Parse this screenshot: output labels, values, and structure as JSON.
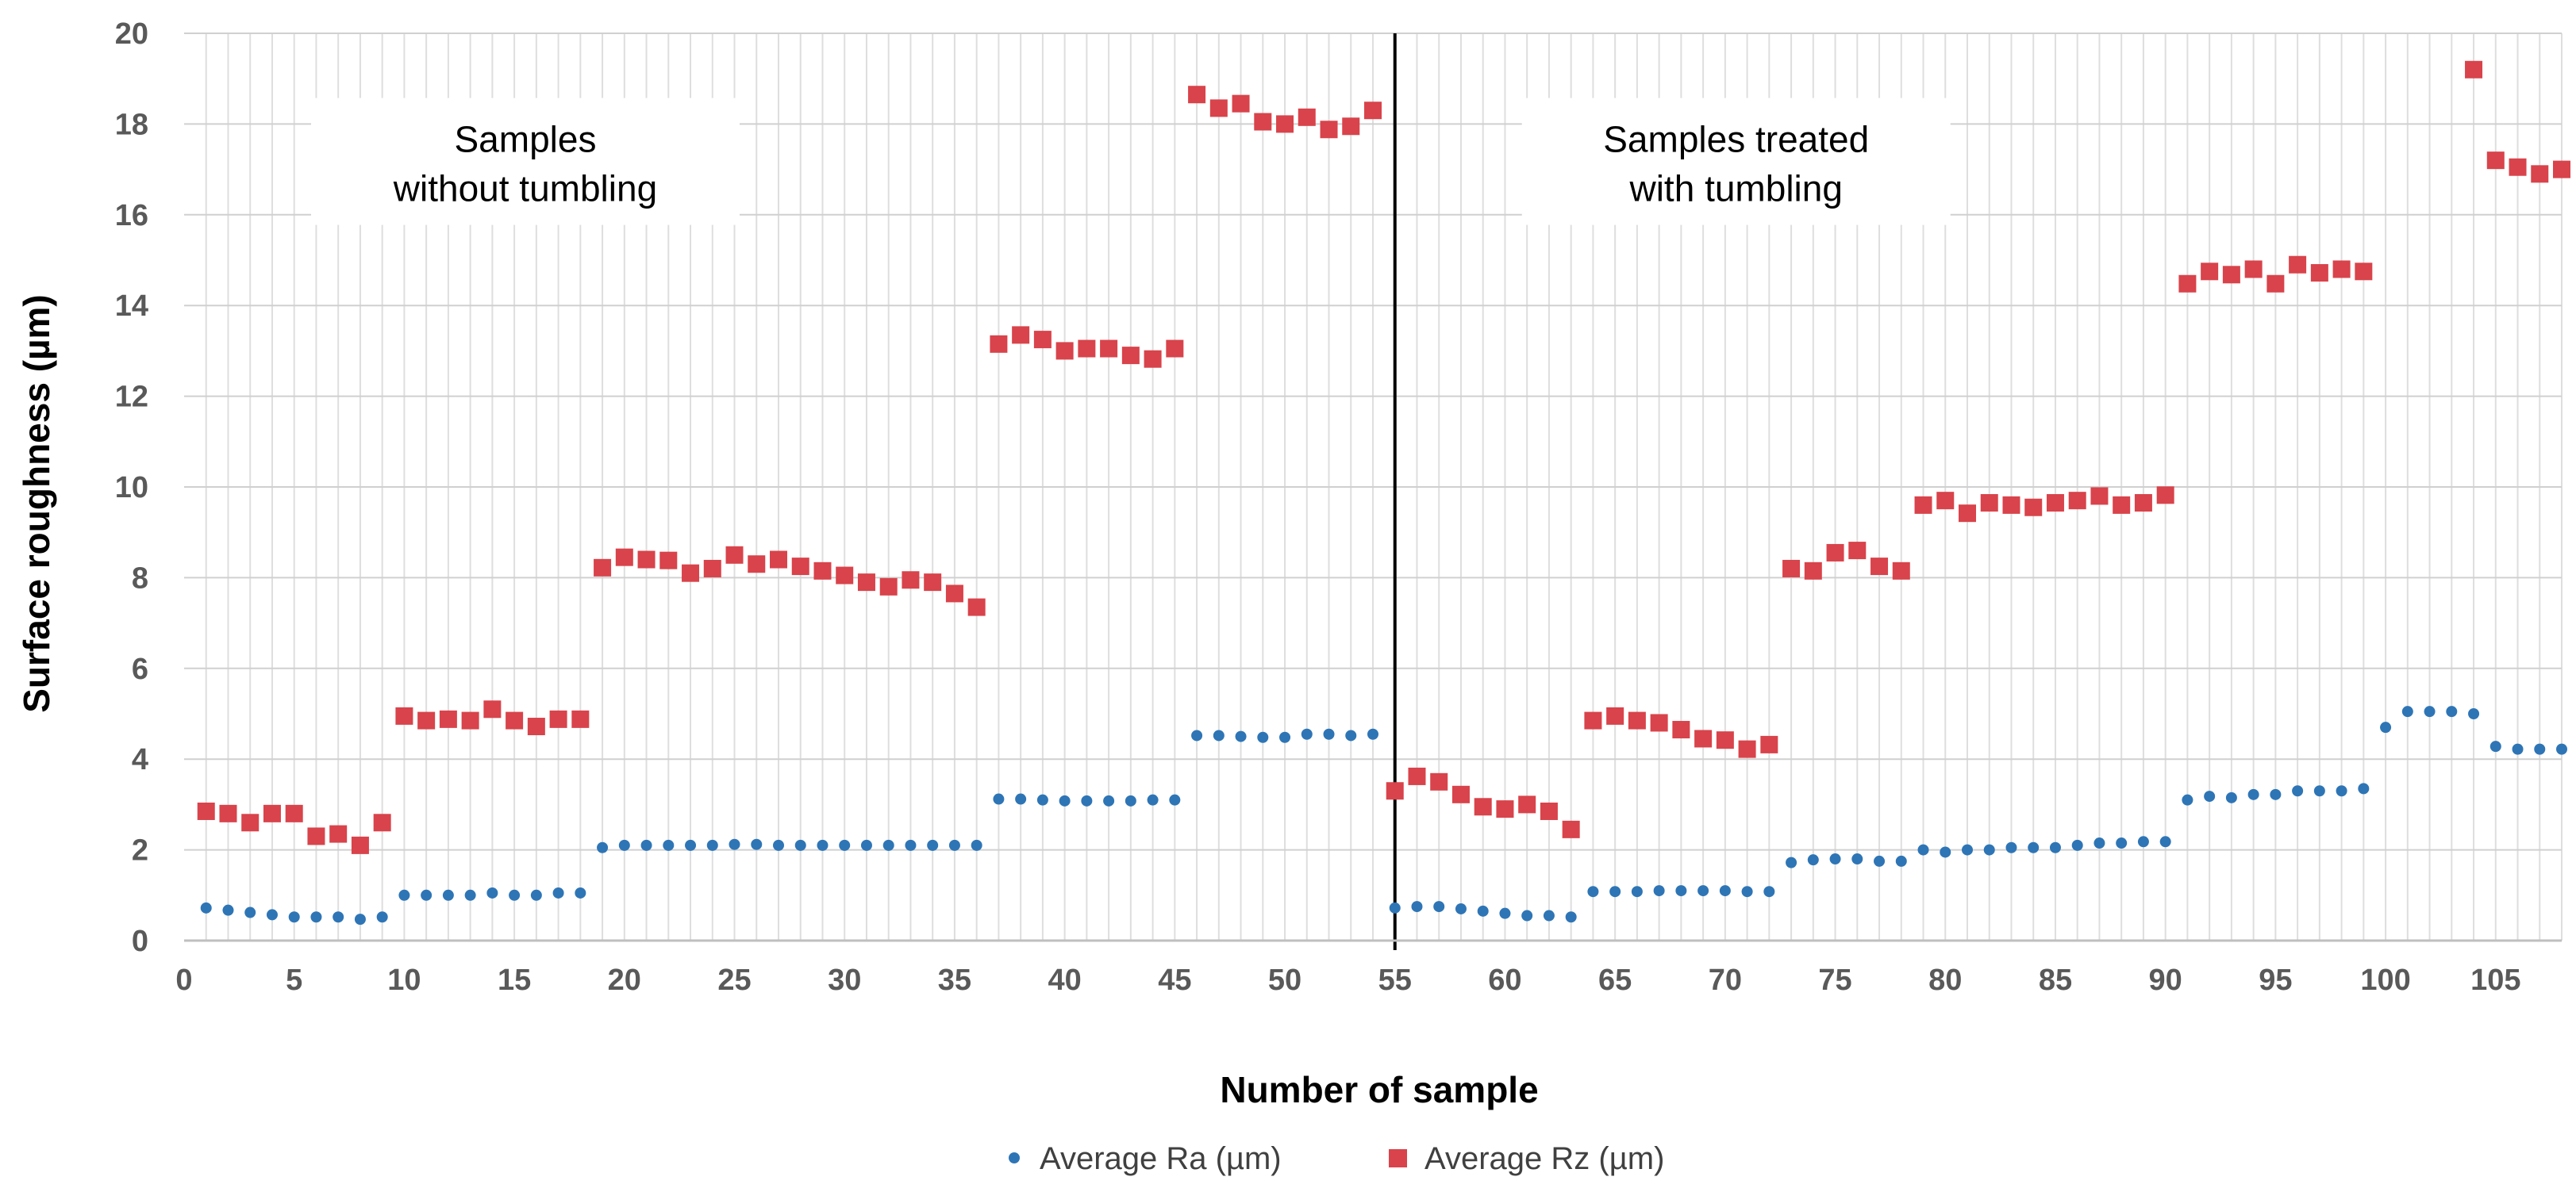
{
  "chart_data": {
    "type": "scatter",
    "title": "",
    "xlabel": "Number of sample",
    "ylabel": "Surface roughness (µm)",
    "xlim": [
      0,
      108
    ],
    "ylim": [
      0,
      20
    ],
    "x_ticks": [
      0,
      5,
      10,
      15,
      20,
      25,
      30,
      35,
      40,
      45,
      50,
      55,
      60,
      65,
      70,
      75,
      80,
      85,
      90,
      95,
      100,
      105
    ],
    "y_ticks": [
      0,
      2,
      4,
      6,
      8,
      10,
      12,
      14,
      16,
      18,
      20
    ],
    "grid": true,
    "legend_position": "bottom",
    "divider_x": 55,
    "annotations": [
      {
        "lines": [
          "Samples",
          "without tumbling"
        ],
        "anchor_x": 15.5,
        "anchor_y": 17.0
      },
      {
        "lines": [
          "Samples treated",
          "with tumbling"
        ],
        "anchor_x": 70.5,
        "anchor_y": 17.0
      }
    ],
    "series": [
      {
        "name": "Average Ra (µm)",
        "marker": "circle",
        "color": "#2E75B6",
        "x": [
          1,
          2,
          3,
          4,
          5,
          6,
          7,
          8,
          9,
          10,
          11,
          12,
          13,
          14,
          15,
          16,
          17,
          18,
          19,
          20,
          21,
          22,
          23,
          24,
          25,
          26,
          27,
          28,
          29,
          30,
          31,
          32,
          33,
          34,
          35,
          36,
          37,
          38,
          39,
          40,
          41,
          42,
          43,
          44,
          45,
          46,
          47,
          48,
          49,
          50,
          51,
          52,
          53,
          54,
          55,
          56,
          57,
          58,
          59,
          60,
          61,
          62,
          63,
          64,
          65,
          66,
          67,
          68,
          69,
          70,
          71,
          72,
          73,
          74,
          75,
          76,
          77,
          78,
          79,
          80,
          81,
          82,
          83,
          84,
          85,
          86,
          87,
          88,
          89,
          90,
          91,
          92,
          93,
          94,
          95,
          96,
          97,
          98,
          99,
          100,
          101,
          102,
          103,
          104,
          105,
          106,
          107,
          108
        ],
        "values": [
          0.72,
          0.67,
          0.62,
          0.57,
          0.52,
          0.52,
          0.52,
          0.47,
          0.52,
          1.0,
          1.0,
          1.0,
          1.0,
          1.05,
          1.0,
          1.0,
          1.05,
          1.05,
          2.05,
          2.1,
          2.1,
          2.1,
          2.1,
          2.1,
          2.12,
          2.12,
          2.1,
          2.1,
          2.1,
          2.1,
          2.1,
          2.1,
          2.1,
          2.1,
          2.1,
          2.1,
          3.12,
          3.12,
          3.1,
          3.08,
          3.08,
          3.08,
          3.08,
          3.1,
          3.1,
          4.52,
          4.52,
          4.5,
          4.48,
          4.48,
          4.55,
          4.55,
          4.52,
          4.55,
          0.72,
          0.75,
          0.75,
          0.7,
          0.65,
          0.6,
          0.55,
          0.55,
          0.52,
          1.08,
          1.08,
          1.08,
          1.1,
          1.1,
          1.1,
          1.1,
          1.08,
          1.08,
          1.72,
          1.78,
          1.8,
          1.8,
          1.75,
          1.75,
          2.0,
          1.95,
          2.0,
          2.0,
          2.05,
          2.05,
          2.05,
          2.1,
          2.15,
          2.15,
          2.18,
          2.18,
          3.1,
          3.18,
          3.15,
          3.22,
          3.22,
          3.3,
          3.3,
          3.3,
          3.35,
          4.7,
          5.05,
          5.05,
          5.05,
          5.0,
          4.28,
          4.22,
          4.22,
          4.22
        ]
      },
      {
        "name": "Average Rz (µm)",
        "marker": "square",
        "color": "#D9434B",
        "x": [
          1,
          2,
          3,
          4,
          5,
          6,
          7,
          8,
          9,
          10,
          11,
          12,
          13,
          14,
          15,
          16,
          17,
          18,
          19,
          20,
          21,
          22,
          23,
          24,
          25,
          26,
          27,
          28,
          29,
          30,
          31,
          32,
          33,
          34,
          35,
          36,
          37,
          38,
          39,
          40,
          41,
          42,
          43,
          44,
          45,
          46,
          47,
          48,
          49,
          50,
          51,
          52,
          53,
          54,
          55,
          56,
          57,
          58,
          59,
          60,
          61,
          62,
          63,
          64,
          65,
          66,
          67,
          68,
          69,
          70,
          71,
          72,
          73,
          74,
          75,
          76,
          77,
          78,
          79,
          80,
          81,
          82,
          83,
          84,
          85,
          86,
          87,
          88,
          89,
          90,
          91,
          92,
          93,
          94,
          95,
          96,
          97,
          98,
          99,
          104,
          105,
          106,
          107,
          108
        ],
        "values": [
          2.85,
          2.8,
          2.6,
          2.8,
          2.8,
          2.3,
          2.35,
          2.1,
          2.6,
          4.95,
          4.85,
          4.88,
          4.85,
          5.1,
          4.85,
          4.72,
          4.88,
          4.88,
          8.22,
          8.45,
          8.4,
          8.38,
          8.1,
          8.2,
          8.5,
          8.3,
          8.4,
          8.25,
          8.15,
          8.05,
          7.9,
          7.8,
          7.95,
          7.9,
          7.65,
          7.35,
          13.15,
          13.35,
          13.25,
          13.0,
          13.05,
          13.05,
          12.9,
          12.82,
          13.05,
          18.65,
          18.35,
          18.45,
          18.05,
          18.0,
          18.15,
          17.88,
          17.95,
          18.3,
          3.3,
          3.62,
          3.5,
          3.22,
          2.95,
          2.9,
          3.0,
          2.85,
          2.45,
          4.85,
          4.95,
          4.85,
          4.8,
          4.65,
          4.45,
          4.42,
          4.22,
          4.32,
          8.2,
          8.15,
          8.55,
          8.6,
          8.25,
          8.15,
          9.6,
          9.7,
          9.42,
          9.65,
          9.6,
          9.55,
          9.65,
          9.7,
          9.8,
          9.6,
          9.65,
          9.82,
          14.48,
          14.75,
          14.68,
          14.8,
          14.48,
          14.9,
          14.72,
          14.8,
          14.75,
          19.2,
          17.2,
          17.05,
          16.9,
          17.0
        ]
      }
    ]
  }
}
